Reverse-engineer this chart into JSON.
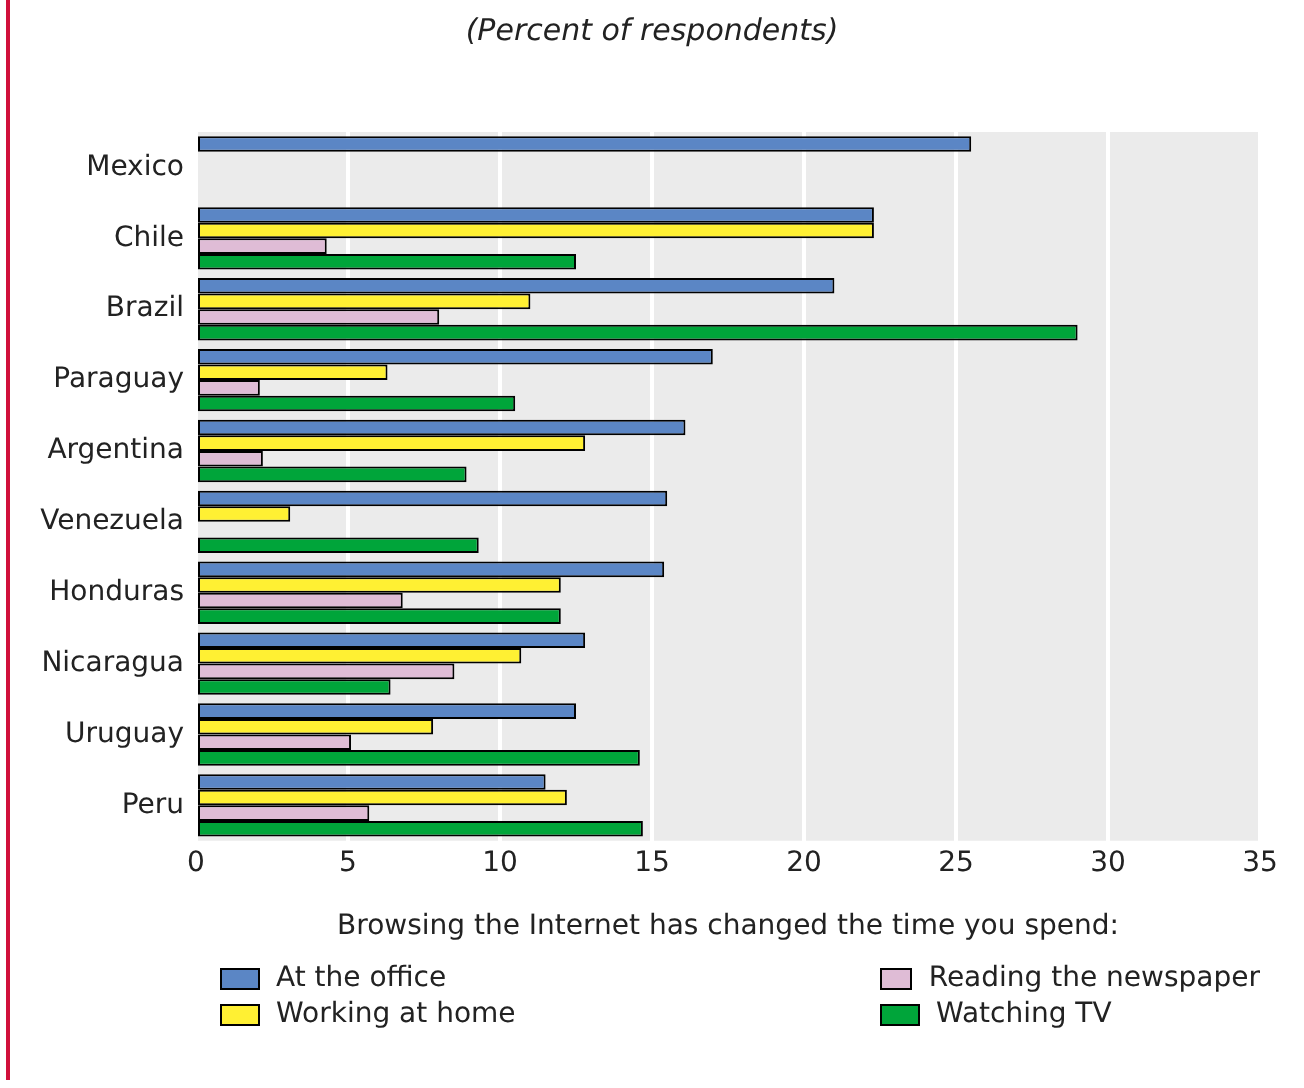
{
  "chart_data": {
    "type": "bar",
    "orientation": "horizontal",
    "title": "(Percent of respondents)",
    "xlabel": "Browsing the Internet has changed the time you spend:",
    "categories": [
      "Mexico",
      "Chile",
      "Brazil",
      "Paraguay",
      "Argentina",
      "Venezuela",
      "Honduras",
      "Nicaragua",
      "Uruguay",
      "Peru"
    ],
    "series": [
      {
        "name": "At the office",
        "color": "#5b86c5",
        "values": [
          25.5,
          22.3,
          21.0,
          17.0,
          16.1,
          15.5,
          15.4,
          12.8,
          12.5,
          11.5
        ]
      },
      {
        "name": "Working at home",
        "color": "#fff033",
        "values": [
          null,
          22.3,
          11.0,
          6.3,
          12.8,
          3.1,
          12.0,
          10.7,
          7.8,
          12.2
        ]
      },
      {
        "name": "Reading the newspaper",
        "color": "#dfbcd6",
        "values": [
          null,
          4.3,
          8.0,
          2.1,
          2.2,
          null,
          6.8,
          8.5,
          5.1,
          5.7
        ]
      },
      {
        "name": "Watching TV",
        "color": "#00a53a",
        "values": [
          null,
          12.5,
          29.0,
          10.5,
          8.9,
          9.3,
          12.0,
          6.4,
          14.6,
          14.7
        ]
      }
    ],
    "xlim": [
      0,
      35
    ],
    "xticks": [
      0,
      5,
      10,
      15,
      20,
      25,
      30,
      35
    ],
    "grid": "x",
    "legend": "bottom"
  }
}
